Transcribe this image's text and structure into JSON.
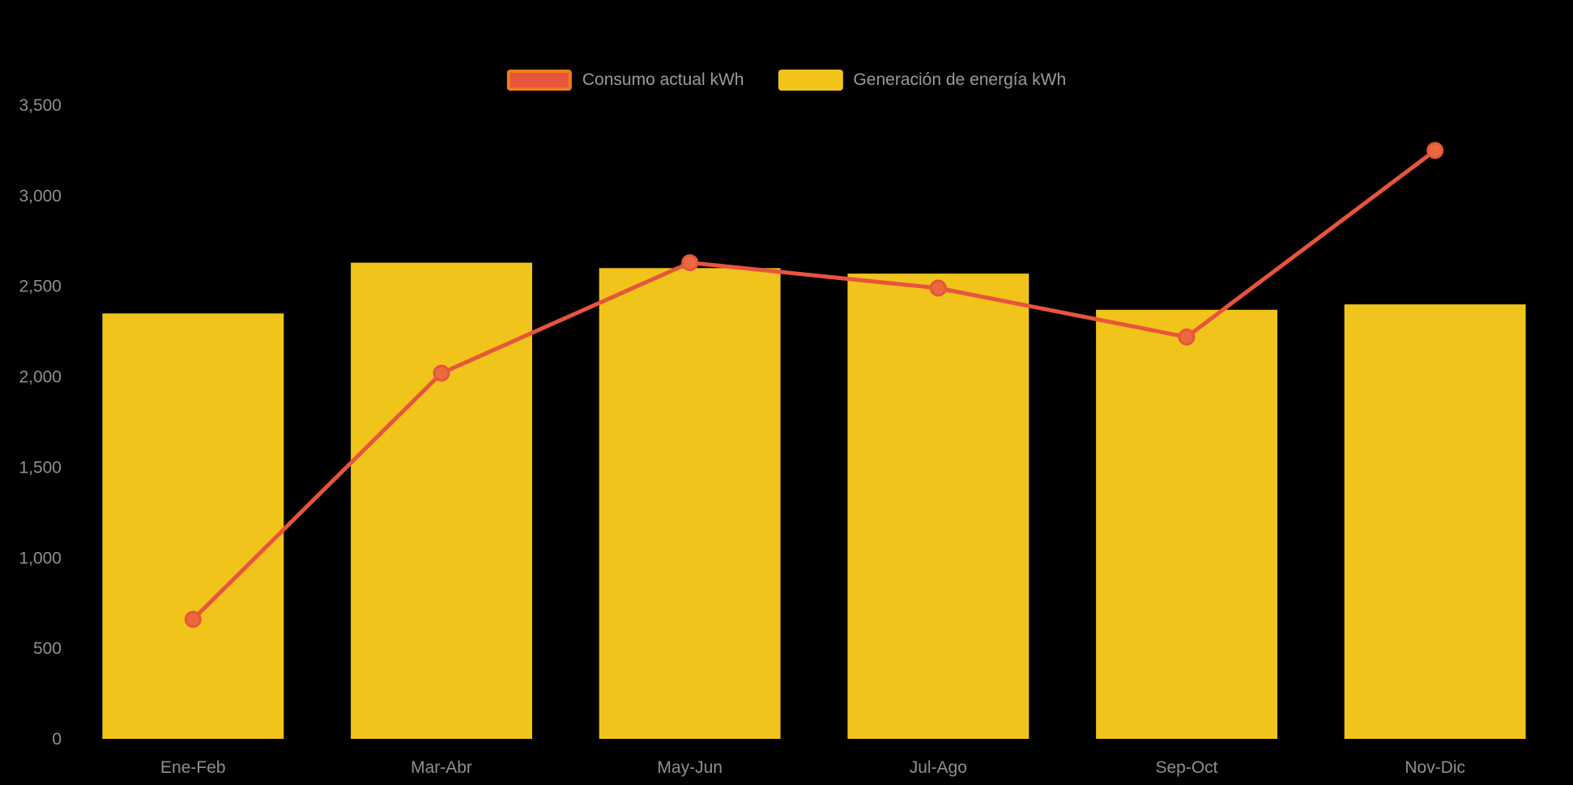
{
  "colors": {
    "background": "#000000",
    "axis_text": "#8f8f8f",
    "legend_text": "#9a9a9a"
  },
  "legend": {
    "items": [
      {
        "label": "Consumo actual kWh",
        "color": "#e8543c",
        "border": "#ef7d1a"
      },
      {
        "label": "Generación de energía kWh",
        "color": "#f0c41b",
        "border": "#f0c41b"
      }
    ]
  },
  "chart_data": {
    "type": "bar",
    "subtype": "combo-bar-line",
    "title": "",
    "categories": [
      "Ene-Feb",
      "Mar-Abr",
      "May-Jun",
      "Jul-Ago",
      "Sep-Oct",
      "Nov-Dic"
    ],
    "series": [
      {
        "name": "Consumo actual kWh",
        "type": "line",
        "color": "#e8543c",
        "marker_color": "#eb6a3d",
        "values": [
          660,
          2020,
          2630,
          2490,
          2220,
          3250
        ]
      },
      {
        "name": "Generación de energía kWh",
        "type": "bar",
        "color": "#f0c41b",
        "values": [
          2350,
          2630,
          2600,
          2570,
          2370,
          2400
        ]
      }
    ],
    "xlabel": "",
    "ylabel": "",
    "y_axis": {
      "min": 0,
      "max": 3500,
      "tick_interval": 500,
      "tick_labels": [
        "0",
        "500",
        "1,000",
        "1,500",
        "2,000",
        "2,500",
        "3,000",
        "3,500"
      ]
    },
    "grid": false,
    "legend_position": "top-center",
    "background": "#000000"
  }
}
